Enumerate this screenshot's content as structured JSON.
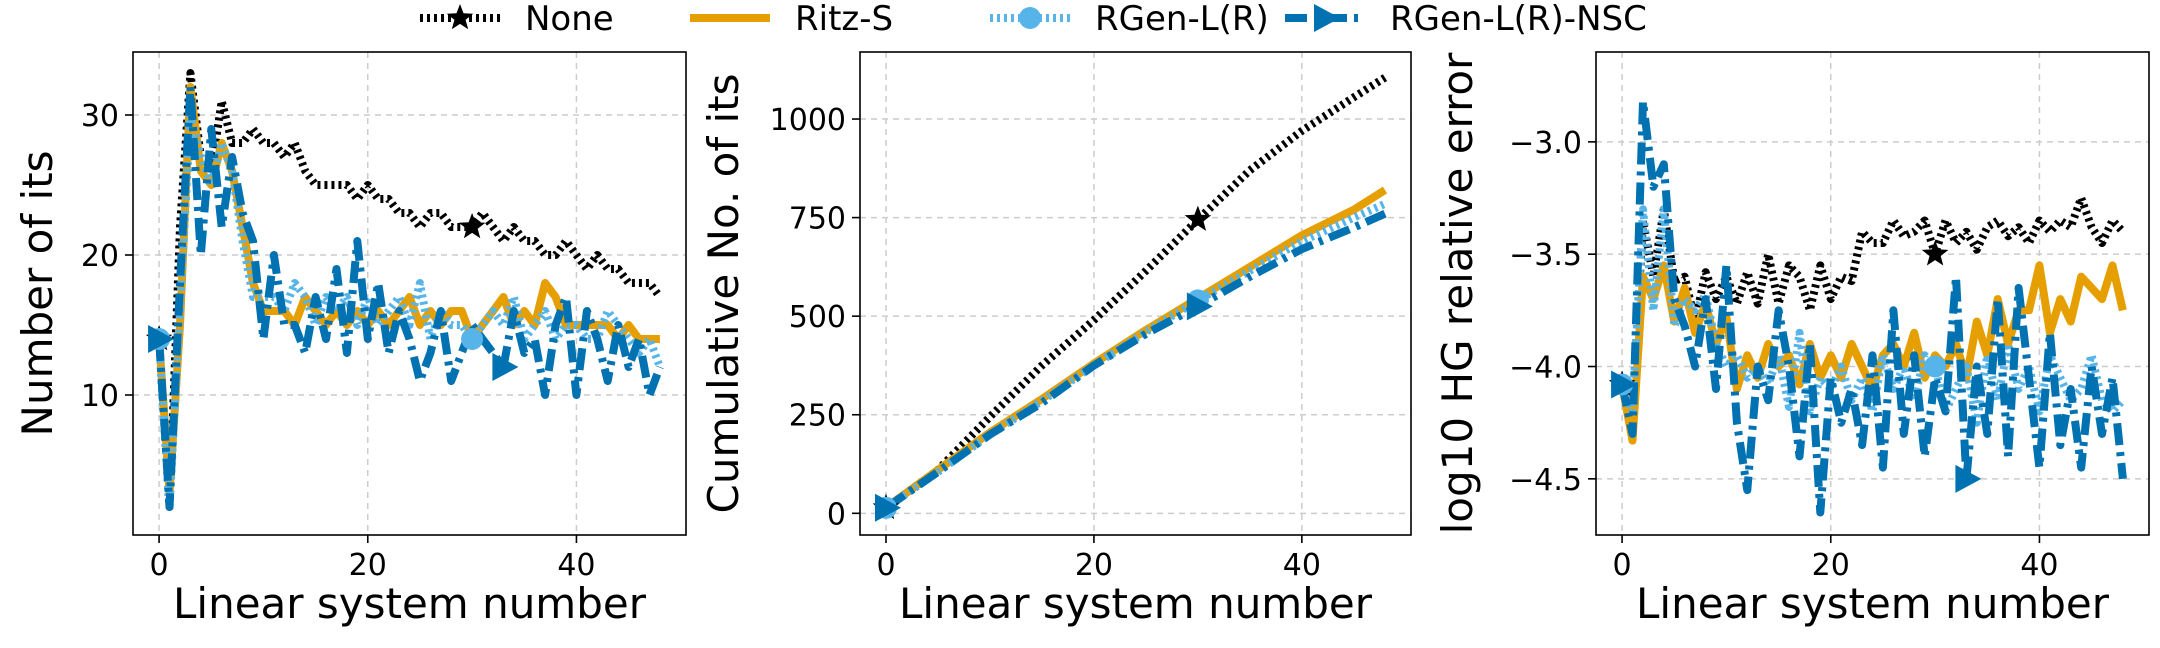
{
  "legend": {
    "entries": [
      {
        "label": "None",
        "color": "#000000",
        "marker": "star",
        "dash": "dotted"
      },
      {
        "label": "Ritz-S",
        "color": "#e69f00",
        "marker": "none",
        "dash": "solid"
      },
      {
        "label": "RGen-L(R)",
        "color": "#56b4e9",
        "marker": "circle",
        "dash": "dotted"
      },
      {
        "label": "RGen-L(R)-NSC",
        "color": "#0072b2",
        "marker": "triangle-right",
        "dash": "dashdot"
      }
    ]
  },
  "chart_data": [
    {
      "type": "line",
      "xlabel": "Linear system number",
      "ylabel": "Number of its",
      "xlim": [
        -2.5,
        50.5
      ],
      "ylim": [
        0,
        34.5
      ],
      "xticks": [
        0,
        20,
        40
      ],
      "yticks": [
        10,
        20,
        30
      ],
      "grid": true,
      "x": [
        0,
        1,
        2,
        3,
        4,
        5,
        6,
        7,
        8,
        9,
        10,
        11,
        12,
        13,
        14,
        15,
        16,
        17,
        18,
        19,
        20,
        21,
        22,
        23,
        24,
        25,
        26,
        27,
        28,
        29,
        30,
        31,
        32,
        33,
        34,
        35,
        36,
        37,
        38,
        39,
        40,
        41,
        42,
        43,
        44,
        45,
        46,
        47,
        48
      ],
      "series": [
        {
          "name": "None",
          "color": "#000000",
          "marker": "star",
          "marker_at": 30,
          "values": [
            14,
            2,
            22,
            33,
            27,
            26,
            31,
            28,
            28,
            29,
            28,
            28,
            27,
            28,
            26,
            25,
            25,
            25,
            25,
            24,
            25,
            24,
            24,
            23,
            23,
            22,
            23,
            23,
            22,
            22,
            22,
            23,
            22,
            21,
            22,
            21,
            21,
            20,
            20,
            21,
            20,
            19,
            20,
            19,
            19,
            18,
            18,
            18,
            17
          ]
        },
        {
          "name": "Ritz-S",
          "color": "#e69f00",
          "marker": "none",
          "values": [
            14,
            3,
            15,
            32,
            26,
            25,
            28,
            26,
            22,
            18,
            16,
            16,
            16,
            15,
            17,
            16,
            15,
            16,
            15,
            16,
            15,
            16,
            15,
            16,
            17,
            15,
            16,
            15,
            16,
            16,
            14,
            15,
            16,
            17,
            15,
            16,
            15,
            18,
            17,
            15,
            15,
            15,
            15,
            15,
            14,
            15,
            14,
            14,
            14
          ]
        },
        {
          "name": "RGen-L(R)",
          "color": "#56b4e9",
          "marker": "circle",
          "marker_at": 30,
          "values": [
            14,
            2,
            16,
            30,
            27,
            25,
            28,
            26,
            21,
            17,
            17,
            17,
            16,
            18,
            17,
            15,
            17,
            16,
            17,
            15,
            17,
            15,
            16,
            17,
            15,
            18,
            14,
            16,
            15,
            15,
            14,
            15,
            16,
            15,
            17,
            14,
            15,
            16,
            14,
            15,
            15,
            14,
            14,
            16,
            15,
            14,
            13,
            14,
            12
          ]
        },
        {
          "name": "RGen-L(R)-NSC",
          "color": "#0072b2",
          "marker": "triangle-right",
          "marker_at": 33,
          "values": [
            14,
            2,
            18,
            32,
            20,
            29,
            22,
            27,
            23,
            21,
            14,
            20,
            15,
            15,
            13,
            17,
            14,
            19,
            13,
            21,
            14,
            18,
            13,
            16,
            14,
            11,
            13,
            16,
            11,
            13,
            15,
            14,
            13,
            12,
            16,
            13,
            14,
            10,
            15,
            17,
            10,
            16,
            14,
            11,
            15,
            12,
            14,
            10,
            12
          ]
        }
      ]
    },
    {
      "type": "line",
      "xlabel": "Linear system number",
      "ylabel": "Cumulative No. of its",
      "xlim": [
        -2.5,
        50.5
      ],
      "ylim": [
        -55,
        1170
      ],
      "xticks": [
        0,
        20,
        40
      ],
      "yticks": [
        0,
        250,
        500,
        750,
        1000
      ],
      "grid": true,
      "x": [
        0,
        5,
        10,
        15,
        20,
        25,
        30,
        35,
        40,
        45,
        48
      ],
      "series": [
        {
          "name": "None",
          "color": "#000000",
          "marker": "star",
          "marker_at": 30,
          "values": [
            14,
            110,
            245,
            375,
            490,
            615,
            745,
            870,
            970,
            1055,
            1105
          ]
        },
        {
          "name": "Ritz-S",
          "color": "#e69f00",
          "marker": "none",
          "values": [
            14,
            110,
            205,
            290,
            380,
            465,
            545,
            625,
            705,
            770,
            820
          ]
        },
        {
          "name": "RGen-L(R)",
          "color": "#56b4e9",
          "marker": "circle",
          "marker_at": 30,
          "values": [
            14,
            105,
            200,
            285,
            375,
            460,
            540,
            615,
            690,
            750,
            785
          ]
        },
        {
          "name": "RGen-L(R)-NSC",
          "color": "#0072b2",
          "marker": "triangle-right",
          "marker_at": 30,
          "values": [
            14,
            105,
            200,
            280,
            375,
            455,
            525,
            600,
            670,
            725,
            760
          ]
        }
      ]
    },
    {
      "type": "line",
      "xlabel": "Linear system number",
      "ylabel": "log10 HG relative error",
      "xlim": [
        -2.5,
        50.5
      ],
      "ylim": [
        -4.75,
        -2.6
      ],
      "xticks": [
        0,
        20,
        40
      ],
      "yticks": [
        -3.0,
        -3.5,
        -4.0,
        -4.5
      ],
      "ytick_labels": [
        "−3.0",
        "−3.5",
        "−4.0",
        "−4.5"
      ],
      "grid": true,
      "x": [
        0,
        1,
        2,
        3,
        4,
        5,
        6,
        7,
        8,
        9,
        10,
        11,
        12,
        13,
        14,
        15,
        16,
        17,
        18,
        19,
        20,
        21,
        22,
        23,
        24,
        25,
        26,
        27,
        28,
        29,
        30,
        31,
        32,
        33,
        34,
        35,
        36,
        37,
        38,
        39,
        40,
        41,
        42,
        43,
        44,
        45,
        46,
        47,
        48
      ],
      "series": [
        {
          "name": "None",
          "color": "#000000",
          "marker": "star",
          "marker_at": 30,
          "values": [
            -4.08,
            -4.2,
            -3.35,
            -3.6,
            -3.3,
            -3.62,
            -3.6,
            -3.8,
            -3.58,
            -3.7,
            -3.6,
            -3.72,
            -3.58,
            -3.72,
            -3.5,
            -3.72,
            -3.55,
            -3.6,
            -3.75,
            -3.55,
            -3.7,
            -3.6,
            -3.62,
            -3.4,
            -3.45,
            -3.45,
            -3.35,
            -3.42,
            -3.4,
            -3.35,
            -3.5,
            -3.35,
            -3.45,
            -3.4,
            -3.48,
            -3.38,
            -3.35,
            -3.42,
            -3.38,
            -3.45,
            -3.35,
            -3.4,
            -3.35,
            -3.38,
            -3.25,
            -3.38,
            -3.45,
            -3.35,
            -3.4
          ]
        },
        {
          "name": "Ritz-S",
          "color": "#e69f00",
          "marker": "none",
          "values": [
            -4.08,
            -4.33,
            -3.6,
            -3.7,
            -3.55,
            -3.8,
            -3.65,
            -3.85,
            -3.72,
            -3.9,
            -3.78,
            -4.1,
            -3.95,
            -4.05,
            -3.9,
            -4.0,
            -3.95,
            -4.08,
            -3.9,
            -4.05,
            -3.95,
            -4.05,
            -3.9,
            -4.0,
            -4.1,
            -3.95,
            -3.9,
            -4.0,
            -3.85,
            -4.05,
            -3.95,
            -4.0,
            -3.9,
            -4.05,
            -3.8,
            -3.95,
            -3.7,
            -3.9,
            -3.75,
            -3.75,
            -3.55,
            -3.85,
            -3.7,
            -3.8,
            -3.6,
            -3.65,
            -3.7,
            -3.55,
            -3.75
          ]
        },
        {
          "name": "RGen-L(R)",
          "color": "#56b4e9",
          "marker": "circle",
          "marker_at": 30,
          "values": [
            -4.08,
            -4.2,
            -3.3,
            -3.75,
            -3.3,
            -3.82,
            -3.7,
            -3.75,
            -3.68,
            -3.9,
            -4.0,
            -3.95,
            -4.05,
            -4.0,
            -4.08,
            -3.95,
            -4.18,
            -3.85,
            -4.2,
            -4.05,
            -4.1,
            -4.0,
            -4.15,
            -4.05,
            -4.2,
            -3.95,
            -4.1,
            -4.0,
            -4.15,
            -3.95,
            -4.0,
            -4.2,
            -4.1,
            -4.0,
            -4.25,
            -3.95,
            -4.15,
            -3.9,
            -4.1,
            -4.0,
            -4.2,
            -3.95,
            -4.05,
            -4.15,
            -4.1,
            -3.95,
            -4.15,
            -4.2,
            -4.15
          ]
        },
        {
          "name": "RGen-L(R)-NSC",
          "color": "#0072b2",
          "marker": "triangle-right",
          "marker_at": 33,
          "values": [
            -4.08,
            -4.3,
            -2.82,
            -3.2,
            -3.1,
            -3.7,
            -3.82,
            -4.0,
            -3.7,
            -4.1,
            -3.55,
            -4.25,
            -4.55,
            -4.0,
            -4.15,
            -3.75,
            -4.0,
            -4.4,
            -3.9,
            -4.65,
            -4.05,
            -4.25,
            -4.1,
            -4.35,
            -3.95,
            -4.45,
            -3.75,
            -4.3,
            -3.95,
            -4.4,
            -4.05,
            -4.2,
            -3.6,
            -4.5,
            -4.0,
            -4.3,
            -3.7,
            -4.4,
            -3.65,
            -4.05,
            -4.45,
            -3.85,
            -4.35,
            -4.1,
            -4.45,
            -4.0,
            -4.3,
            -4.05,
            -4.5
          ]
        }
      ]
    }
  ]
}
